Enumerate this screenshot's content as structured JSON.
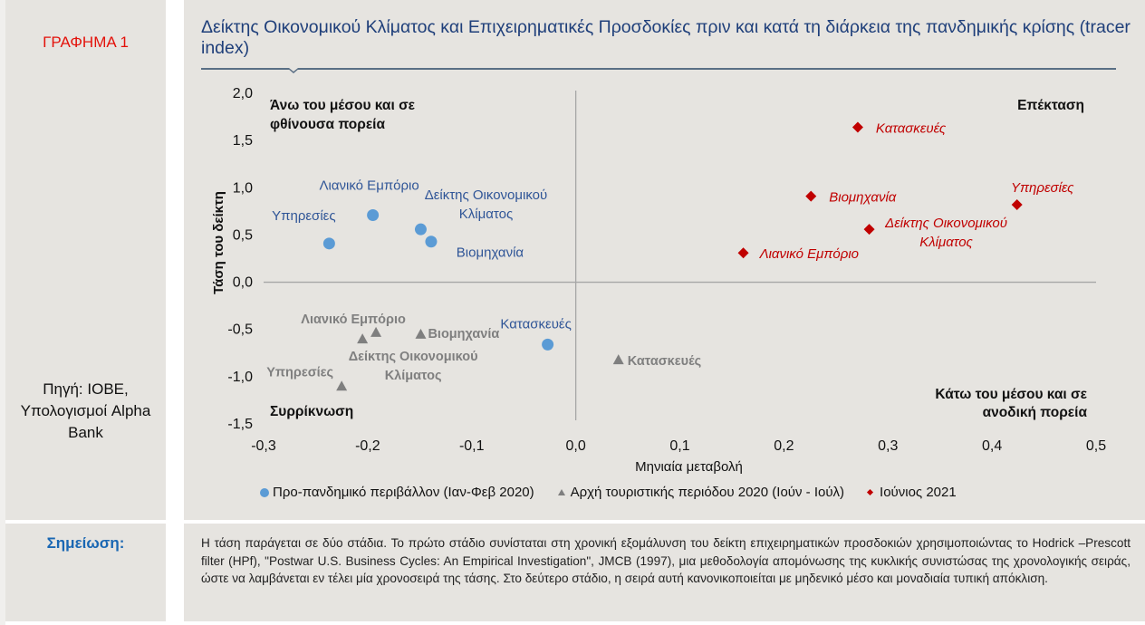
{
  "sidebar": {
    "figure_label": "ΓΡΑΦΗΜΑ 1",
    "source_label": "Πηγή: ΙΟΒΕ, Υπολογισμοί Alpha Bank",
    "note_label": "Σημείωση:"
  },
  "note_text": "Η τάση παράγεται σε δύο στάδια. Το πρώτο στάδιο συνίσταται στη χρονική εξομάλυνση του δείκτη επιχειρηματικών προσδοκιών χρησιμοποιώντας το Hodrick –Prescott filter (HPf), \"Postwar U.S. Business Cycles: An Empirical Investigation\", JMCB (1997), μια μεθοδολογία απομόνωσης της κυκλικής συνιστώσας της χρονολογικής σειράς, ώστε να λαμβάνεται εν τέλει μία χρονοσειρά της τάσης. Στο δεύτερο στάδιο, η σειρά αυτή κανονικοποιείται με μηδενικό μέσο και μοναδιαία τυπική απόκλιση.",
  "colors": {
    "pre_pandemic": "#5b9bd5",
    "pre_pandemic_label": "#2f5597",
    "tourist_2020": "#7f7f7f",
    "june_2021": "#c00000",
    "title": "#1f3f7a",
    "figure_label": "#e3120b"
  },
  "chart_data": {
    "type": "scatter",
    "title": "Δείκτης Οικονομικού Κλίματος και Επιχειρηματικές Προσδοκίες πριν και κατά τη διάρκεια της πανδημικής κρίσης (tracer index)",
    "xlabel": "Μηνιαία μεταβολή",
    "ylabel": "Τάση του δείκτη",
    "xlim": [
      -0.3,
      0.5
    ],
    "ylim": [
      -1.5,
      2.0
    ],
    "x_ticks": [
      "-0,3",
      "-0,2",
      "-0,1",
      "0,0",
      "0,1",
      "0,2",
      "0,3",
      "0,4",
      "0,5"
    ],
    "y_ticks": [
      "2,0",
      "1,5",
      "1,0",
      "0,5",
      "0,0",
      "-0,5",
      "-1,0",
      "-1,5"
    ],
    "grid": false,
    "legend_position": "bottom",
    "quadrant_labels": {
      "top_left": "Άνω του μέσου και σε φθίνουσα πορεία",
      "top_right": "Επέκταση",
      "bottom_left": "Συρρίκνωση",
      "bottom_right": "Κάτω του μέσου και σε ανοδική πορεία"
    },
    "series": [
      {
        "name": "Προ-πανδημικό περιβάλλον (Ιαν-Φεβ 2020)",
        "marker": "circle",
        "points": [
          {
            "label": "Λιανικό Εμπόριο",
            "x": -0.195,
            "y": 0.71
          },
          {
            "label": "Υπηρεσίες",
            "x": -0.237,
            "y": 0.41
          },
          {
            "label": "Δείκτης Οικονομικού Κλίματος",
            "x": -0.149,
            "y": 0.56
          },
          {
            "label": "Βιομηχανία",
            "x": -0.139,
            "y": 0.43
          },
          {
            "label": "Κατασκευές",
            "x": -0.027,
            "y": -0.66
          }
        ]
      },
      {
        "name": "Αρχή τουριστικής περιόδου 2020 (Ιούν - Ιούλ)",
        "marker": "triangle",
        "points": [
          {
            "label": "Λιανικό Εμπόριο",
            "x": -0.192,
            "y": -0.53
          },
          {
            "label": "Δείκτης Οικονομικού Κλίματος",
            "x": -0.205,
            "y": -0.6
          },
          {
            "label": "Βιομηχανία",
            "x": -0.149,
            "y": -0.55
          },
          {
            "label": "Υπηρεσίες",
            "x": -0.225,
            "y": -1.1
          },
          {
            "label": "Κατασκευές",
            "x": 0.041,
            "y": -0.82
          }
        ]
      },
      {
        "name": "Ιούνιος 2021",
        "marker": "diamond",
        "points": [
          {
            "label": "Κατασκευές",
            "x": 0.271,
            "y": 1.64
          },
          {
            "label": "Βιομηχανία",
            "x": 0.226,
            "y": 0.91
          },
          {
            "label": "Υπηρεσίες",
            "x": 0.424,
            "y": 0.82
          },
          {
            "label": "Δείκτης Οικονομικού Κλίματος",
            "x": 0.282,
            "y": 0.56
          },
          {
            "label": "Λιανικό Εμπόριο",
            "x": 0.161,
            "y": 0.31
          }
        ]
      }
    ]
  }
}
